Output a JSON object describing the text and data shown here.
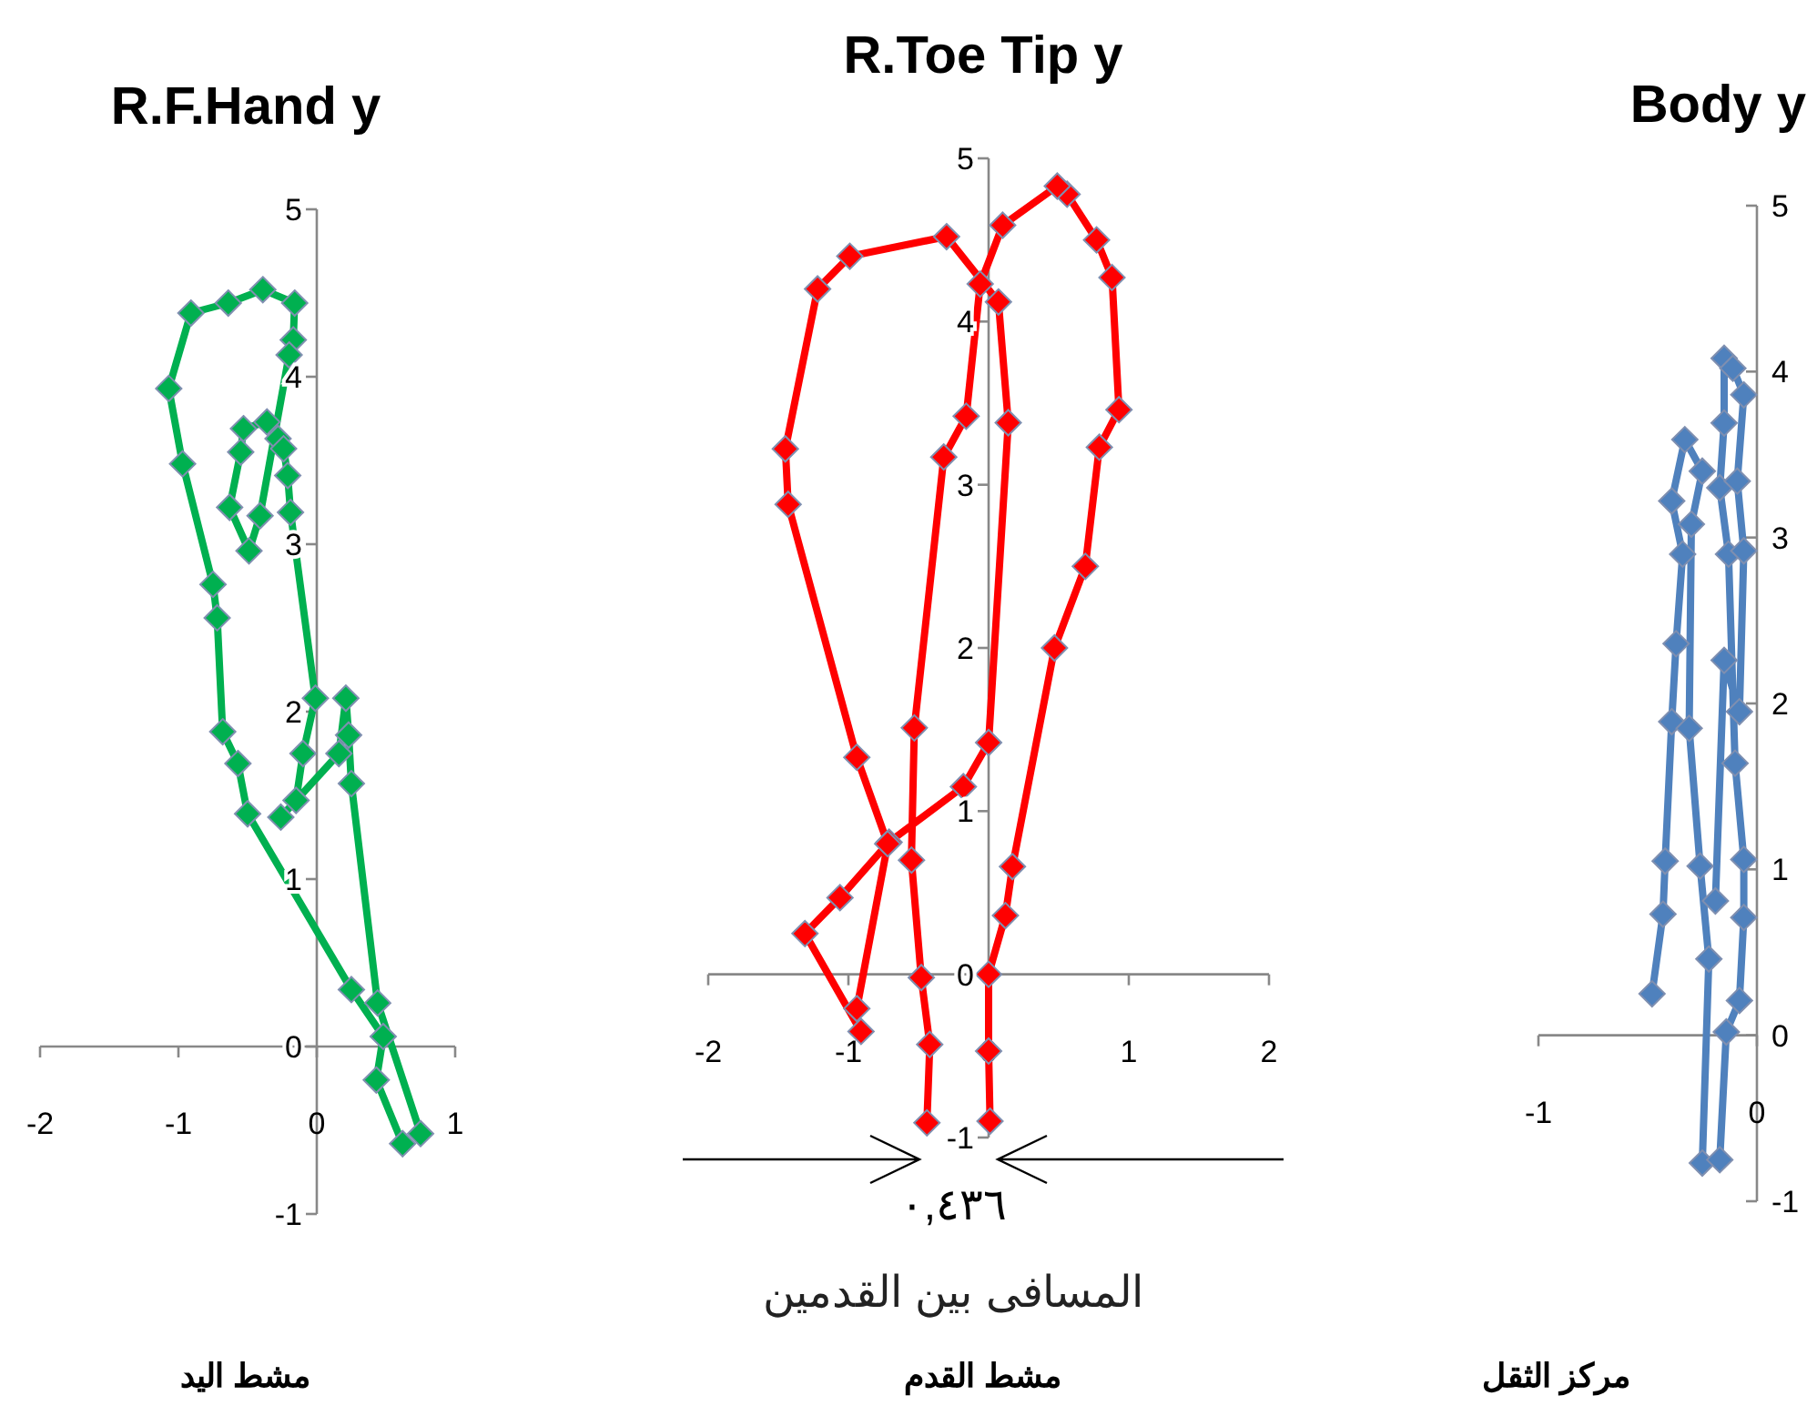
{
  "chart_data": [
    {
      "type": "line",
      "title": "R.F.Hand y",
      "xlabel": "مشط اليد",
      "xlim": [
        -2,
        1
      ],
      "ylim": [
        -1,
        5
      ],
      "xticks": [
        -2,
        -1,
        0,
        1
      ],
      "yticks": [
        -1,
        0,
        1,
        2,
        3,
        4,
        5
      ],
      "marker": "diamond",
      "line_style": "solid",
      "series": [
        {
          "color": "#00b050",
          "x": [
            0.62,
            0.43,
            0.48,
            0.25,
            -0.5,
            -0.57,
            -0.68,
            -0.72,
            -0.75,
            -0.97,
            -1.07,
            -0.91,
            -0.64,
            -0.39,
            -0.16,
            -0.17,
            -0.2,
            -0.41,
            -0.49,
            -0.63,
            -0.55,
            -0.53,
            -0.36,
            -0.28,
            -0.24,
            -0.21,
            -0.19,
            -0.01,
            -0.1,
            -0.15,
            -0.26,
            0.16,
            0.21,
            0.23,
            0.25,
            0.44,
            0.75
          ],
          "values": [
            -0.58,
            -0.2,
            0.06,
            0.34,
            1.39,
            1.69,
            1.88,
            2.56,
            2.76,
            3.48,
            3.93,
            4.38,
            4.44,
            4.52,
            4.44,
            4.22,
            4.13,
            3.17,
            2.96,
            3.22,
            3.55,
            3.69,
            3.73,
            3.63,
            3.57,
            3.41,
            3.19,
            2.08,
            1.75,
            1.47,
            1.37,
            1.75,
            2.08,
            1.86,
            1.57,
            0.26,
            -0.52
          ]
        }
      ]
    },
    {
      "type": "line",
      "title": "R.Toe Tip y",
      "xlabel": "مشط القدم",
      "xlim": [
        -2,
        2
      ],
      "ylim": [
        -1,
        5
      ],
      "xticks": [
        -2,
        -1,
        0,
        1,
        2
      ],
      "yticks": [
        -1,
        0,
        1,
        2,
        3,
        4,
        5
      ],
      "marker": "diamond",
      "line_style": "solid",
      "annotations": [
        "٠,٤٣٦",
        "المسافى بين القدمين"
      ],
      "series": [
        {
          "color": "#ff0000",
          "x": [
            0.01,
            0.0,
            0.0,
            0.12,
            0.17,
            0.47,
            0.69,
            0.79,
            0.93,
            0.88,
            0.77,
            0.56,
            0.49,
            0.1,
            -0.06,
            -0.16,
            -0.32,
            -0.53,
            -0.55,
            -0.48,
            -0.42,
            -0.44,
            null,
            -0.91,
            -1.31,
            -1.06,
            -0.71,
            -0.18,
            0.0,
            0.14,
            0.07,
            -0.3,
            -0.99,
            -1.22,
            -1.45,
            -1.43,
            -0.94,
            -0.72,
            -0.94
          ],
          "values": [
            -0.9,
            -0.47,
            0.0,
            0.36,
            0.66,
            2.0,
            2.5,
            3.23,
            3.46,
            4.27,
            4.5,
            4.78,
            4.83,
            4.59,
            4.23,
            3.42,
            3.17,
            1.51,
            0.7,
            -0.02,
            -0.43,
            -0.91,
            null,
            -0.35,
            0.25,
            0.47,
            0.81,
            1.15,
            1.42,
            3.38,
            4.12,
            4.52,
            4.4,
            4.2,
            3.22,
            2.88,
            1.33,
            0.8,
            -0.21
          ]
        }
      ]
    },
    {
      "type": "line",
      "title": "Body y",
      "xlabel": "مركز الثقل",
      "xlim": [
        -1,
        0
      ],
      "ylim": [
        -1,
        5
      ],
      "xticks": [
        -1,
        0
      ],
      "yticks": [
        -1,
        0,
        1,
        2,
        3,
        4,
        5
      ],
      "marker": "diamond",
      "line_style": "solid",
      "series": [
        {
          "color": "#4f81bd",
          "x": [
            -0.48,
            -0.43,
            -0.42,
            -0.39,
            -0.37,
            -0.34,
            -0.39,
            -0.33,
            -0.25,
            -0.3,
            -0.31,
            -0.26,
            -0.22,
            -0.25,
            -0.17,
            -0.14,
            -0.08,
            -0.06,
            -0.06,
            -0.1,
            -0.13,
            -0.17,
            -0.15,
            -0.15,
            -0.11,
            -0.06,
            -0.09,
            -0.06,
            -0.08,
            -0.15,
            -0.19
          ],
          "values": [
            0.25,
            0.73,
            1.05,
            1.89,
            2.36,
            2.9,
            3.22,
            3.59,
            3.4,
            3.08,
            1.85,
            1.02,
            0.46,
            -0.77,
            -0.75,
            0.02,
            0.21,
            0.71,
            1.06,
            1.64,
            2.9,
            3.3,
            3.69,
            4.08,
            4.02,
            3.86,
            3.34,
            2.92,
            1.95,
            2.26,
            0.81
          ]
        }
      ]
    }
  ]
}
